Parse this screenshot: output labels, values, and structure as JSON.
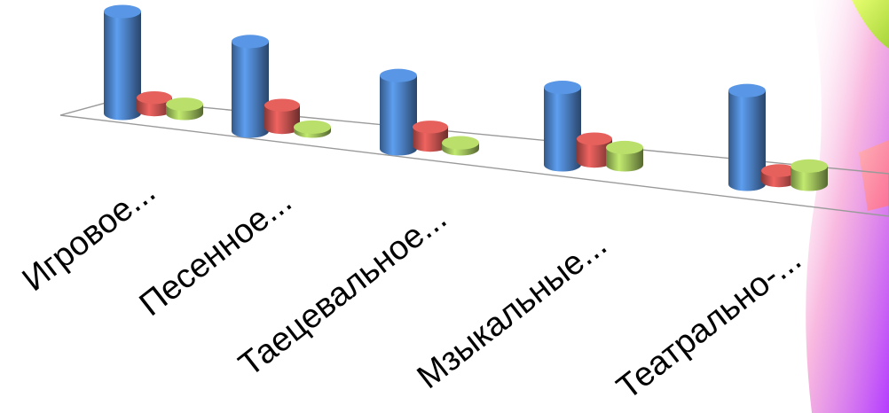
{
  "chart_data": {
    "type": "bar",
    "style": "3d-cylinder",
    "categories": [
      "Игровое...",
      "Песенное...",
      "Таецевальное...",
      "Мзыкальные...",
      "Театрально-..."
    ],
    "series": [
      {
        "values": [
          100,
          88,
          72,
          76,
          92
        ],
        "color": "#4a7ec0"
      },
      {
        "values": [
          12,
          22,
          18,
          22,
          10
        ],
        "color": "#c0504d"
      },
      {
        "values": [
          9,
          4,
          6,
          17,
          18
        ],
        "color": "#9bbb59"
      }
    ],
    "ylim": [
      0,
      100
    ],
    "grid": false,
    "legend": "none"
  },
  "decor": {
    "accent_colors": [
      "#c6ee4a",
      "#ff6f8f",
      "#b43cff",
      "#f4a3c8"
    ]
  }
}
